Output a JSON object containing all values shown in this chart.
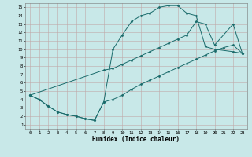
{
  "xlabel": "Humidex (Indice chaleur)",
  "xlim": [
    -0.5,
    23.5
  ],
  "ylim": [
    0.5,
    15.5
  ],
  "xticks": [
    0,
    1,
    2,
    3,
    4,
    5,
    6,
    7,
    8,
    9,
    10,
    11,
    12,
    13,
    14,
    15,
    16,
    17,
    18,
    19,
    20,
    21,
    22,
    23
  ],
  "yticks": [
    1,
    2,
    3,
    4,
    5,
    6,
    7,
    8,
    9,
    10,
    11,
    12,
    13,
    14,
    15
  ],
  "bg_color": "#c8e8e8",
  "grid_color": "#c0a8a8",
  "line_color": "#1a6b6b",
  "line1_x": [
    0,
    1,
    2,
    3,
    4,
    5,
    6,
    7,
    8,
    9,
    10,
    11,
    12,
    13,
    14,
    15,
    16,
    17,
    18,
    19,
    20,
    22,
    23
  ],
  "line1_y": [
    4.5,
    4.0,
    3.2,
    2.5,
    2.2,
    2.0,
    1.7,
    1.5,
    3.7,
    10.0,
    11.7,
    13.3,
    14.0,
    14.3,
    15.0,
    15.2,
    15.2,
    14.3,
    14.0,
    10.3,
    10.0,
    9.7,
    9.5
  ],
  "line2_x": [
    0,
    8,
    9,
    10,
    11,
    12,
    13,
    14,
    15,
    16,
    17,
    18,
    19,
    20,
    22,
    23
  ],
  "line2_y": [
    4.5,
    7.5,
    7.7,
    8.2,
    8.7,
    9.2,
    9.7,
    10.2,
    10.7,
    11.2,
    11.7,
    13.3,
    13.0,
    10.5,
    13.0,
    9.5
  ],
  "line3_x": [
    0,
    1,
    2,
    3,
    4,
    5,
    6,
    7,
    8,
    9,
    10,
    11,
    12,
    13,
    14,
    15,
    16,
    17,
    18,
    19,
    20,
    21,
    22,
    23
  ],
  "line3_y": [
    4.5,
    4.0,
    3.2,
    2.5,
    2.2,
    2.0,
    1.7,
    1.5,
    3.7,
    4.0,
    4.5,
    5.2,
    5.8,
    6.3,
    6.8,
    7.3,
    7.8,
    8.3,
    8.8,
    9.3,
    9.8,
    10.2,
    10.5,
    9.5
  ]
}
